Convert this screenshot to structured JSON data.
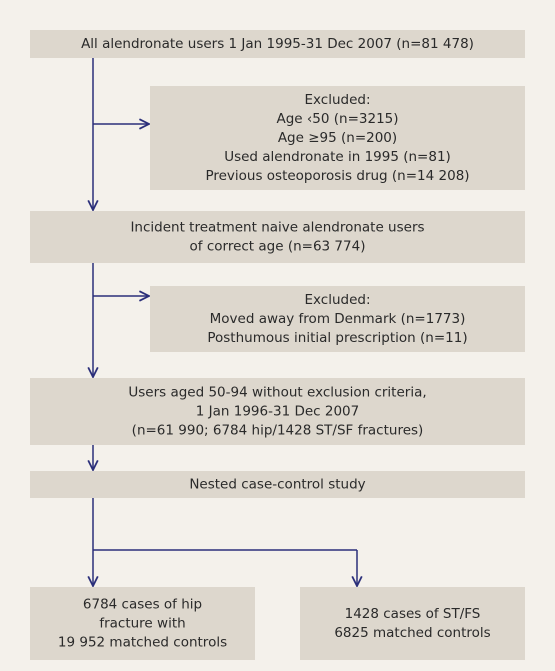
{
  "nodes": [
    {
      "lines": [
        "All alendronate users 1 Jan 1995-31 Dec 2007 (n=81 478)"
      ]
    },
    {
      "lines": [
        "Excluded:",
        "Age ‹50 (n=3215)",
        "Age ≥95 (n=200)",
        "Used alendronate in 1995 (n=81)",
        "Previous osteoporosis drug (n=14 208)"
      ]
    },
    {
      "lines": [
        "Incident treatment naive alendronate users",
        "of correct age (n=63 774)"
      ]
    },
    {
      "lines": [
        "Excluded:",
        "Moved away from Denmark (n=1773)",
        "Posthumous initial prescription (n=11)"
      ]
    },
    {
      "lines": [
        "Users aged 50-94 without exclusion criteria,",
        "1 Jan 1996-31 Dec 2007",
        "(n=61 990; 6784 hip/1428 ST/SF fractures)"
      ]
    },
    {
      "lines": [
        "Nested case-control study"
      ]
    },
    {
      "lines": [
        "6784 cases of hip",
        "fracture with",
        "19 952 matched controls"
      ]
    },
    {
      "lines": [
        "1428 cases of ST/FS",
        "6825 matched controls"
      ]
    }
  ]
}
